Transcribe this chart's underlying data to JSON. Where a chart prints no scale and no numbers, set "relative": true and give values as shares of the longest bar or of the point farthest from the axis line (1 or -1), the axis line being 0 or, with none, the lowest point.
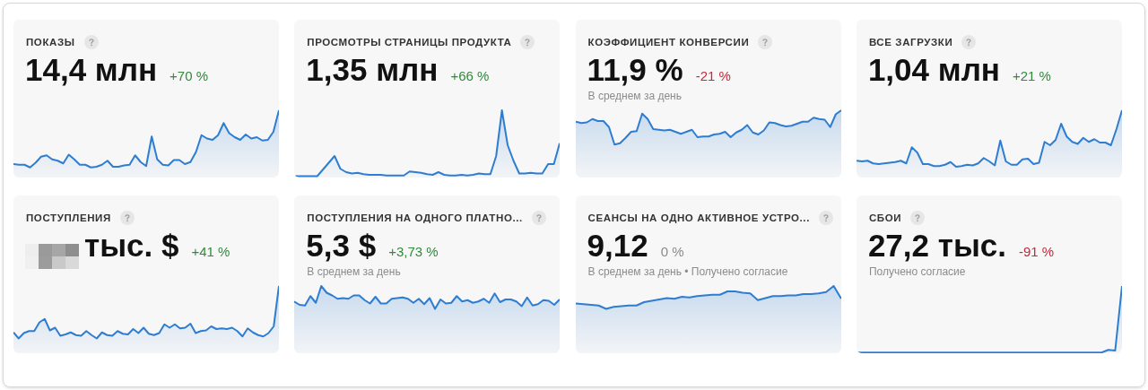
{
  "chart_data": [
    {
      "type": "area",
      "title": "ПОКАЗЫ",
      "subtitle": "14,4 млн",
      "annotations": [
        "+70 %"
      ],
      "relative": true,
      "categories": [
        null,
        null,
        null,
        null,
        null,
        null,
        null,
        null,
        null,
        null,
        null,
        null,
        null,
        null,
        null,
        null,
        null,
        null,
        null,
        null,
        null,
        null,
        null,
        null,
        null,
        null,
        null,
        null,
        null,
        null,
        null,
        null,
        null,
        null,
        null,
        null,
        null,
        null,
        null,
        null,
        null,
        null,
        null,
        null,
        null,
        null,
        null,
        null,
        null
      ],
      "series": [
        {
          "color": "#2e7dd1",
          "values": [
            0.2,
            0.19,
            0.19,
            0.15,
            0.22,
            0.31,
            0.33,
            0.27,
            0.25,
            0.21,
            0.34,
            0.27,
            0.19,
            0.19,
            0.15,
            0.16,
            0.19,
            0.25,
            0.16,
            0.16,
            0.18,
            0.19,
            0.33,
            0.23,
            0.17,
            0.61,
            0.27,
            0.19,
            0.18,
            0.26,
            0.26,
            0.2,
            0.23,
            0.38,
            0.63,
            0.58,
            0.56,
            0.63,
            0.81,
            0.66,
            0.6,
            0.56,
            0.64,
            0.58,
            0.6,
            0.55,
            0.56,
            0.68,
            1
          ]
        }
      ]
    },
    {
      "type": "area",
      "title": "ПРОСМОТРЫ СТРАНИЦЫ ПРОДУКТА",
      "subtitle": "1,35 млн",
      "annotations": [
        "+66 %"
      ],
      "relative": true,
      "categories": [
        null,
        null,
        null,
        null,
        null,
        null,
        null,
        null,
        null,
        null,
        null,
        null,
        null,
        null,
        null,
        null,
        null,
        null,
        null,
        null,
        null,
        null,
        null,
        null,
        null,
        null,
        null,
        null,
        null,
        null,
        null,
        null,
        null,
        null,
        null,
        null,
        null,
        null,
        null,
        null,
        null,
        null,
        null,
        null,
        null,
        null,
        null
      ],
      "series": [
        {
          "color": "#2e7dd1",
          "values": [
            0.02,
            0.02,
            0.02,
            0.02,
            0.02,
            0.12,
            0.22,
            0.32,
            0.13,
            0.08,
            0.06,
            0.07,
            0.05,
            0.04,
            0.04,
            0.04,
            0.03,
            0.03,
            0.03,
            0.03,
            0.09,
            0.08,
            0.07,
            0.05,
            0.04,
            0.08,
            0.04,
            0.03,
            0.03,
            0.04,
            0.03,
            0.04,
            0.06,
            0.05,
            0.05,
            0.32,
            1,
            0.48,
            0.25,
            0.06,
            0.06,
            0.07,
            0.06,
            0.06,
            0.2,
            0.2,
            0.51
          ]
        }
      ]
    },
    {
      "type": "area",
      "title": "КОЭФФИЦИЕНТ КОНВЕРСИИ",
      "subtitle": "11,9 %",
      "annotations": [
        "-21 %",
        "В среднем за день"
      ],
      "relative": true,
      "categories": [
        null,
        null,
        null,
        null,
        null,
        null,
        null,
        null,
        null,
        null,
        null,
        null,
        null,
        null,
        null,
        null,
        null,
        null,
        null,
        null,
        null,
        null,
        null,
        null,
        null,
        null,
        null,
        null,
        null,
        null,
        null,
        null,
        null,
        null,
        null,
        null,
        null,
        null,
        null,
        null,
        null,
        null,
        null,
        null,
        null,
        null,
        null,
        null,
        null
      ],
      "series": [
        {
          "color": "#2e7dd1",
          "values": [
            0.83,
            0.81,
            0.82,
            0.87,
            0.84,
            0.84,
            0.75,
            0.49,
            0.51,
            0.59,
            0.68,
            0.69,
            0.95,
            0.87,
            0.72,
            0.71,
            0.7,
            0.71,
            0.68,
            0.65,
            0.68,
            0.71,
            0.6,
            0.61,
            0.61,
            0.64,
            0.65,
            0.68,
            0.6,
            0.67,
            0.71,
            0.78,
            0.67,
            0.64,
            0.7,
            0.82,
            0.81,
            0.78,
            0.76,
            0.77,
            0.8,
            0.83,
            0.83,
            0.89,
            0.87,
            0.86,
            0.75,
            0.94,
            1
          ]
        }
      ]
    },
    {
      "type": "area",
      "title": "ВСЕ ЗАГРУЗКИ",
      "subtitle": "1,04 млн",
      "annotations": [
        "+21 %"
      ],
      "relative": true,
      "categories": [
        null,
        null,
        null,
        null,
        null,
        null,
        null,
        null,
        null,
        null,
        null,
        null,
        null,
        null,
        null,
        null,
        null,
        null,
        null,
        null,
        null,
        null,
        null,
        null,
        null,
        null,
        null,
        null,
        null,
        null,
        null,
        null,
        null,
        null,
        null,
        null,
        null,
        null,
        null,
        null,
        null,
        null,
        null,
        null,
        null,
        null,
        null,
        null,
        null
      ],
      "series": [
        {
          "color": "#2e7dd1",
          "values": [
            0.25,
            0.24,
            0.25,
            0.21,
            0.2,
            0.21,
            0.22,
            0.23,
            0.25,
            0.21,
            0.45,
            0.37,
            0.2,
            0.2,
            0.17,
            0.17,
            0.19,
            0.23,
            0.16,
            0.17,
            0.19,
            0.18,
            0.21,
            0.29,
            0.24,
            0.18,
            0.55,
            0.24,
            0.19,
            0.19,
            0.27,
            0.28,
            0.2,
            0.22,
            0.53,
            0.48,
            0.56,
            0.8,
            0.61,
            0.53,
            0.5,
            0.59,
            0.53,
            0.57,
            0.52,
            0.52,
            0.48,
            0.72,
            1
          ]
        }
      ]
    },
    {
      "type": "area",
      "title": "ПОСТУПЛЕНИЯ",
      "subtitle": "тыс. $",
      "annotations": [
        "+41 %"
      ],
      "relative": true,
      "categories": [
        null,
        null,
        null,
        null,
        null,
        null,
        null,
        null,
        null,
        null,
        null,
        null,
        null,
        null,
        null,
        null,
        null,
        null,
        null,
        null,
        null,
        null,
        null,
        null,
        null,
        null,
        null,
        null,
        null,
        null,
        null,
        null,
        null,
        null,
        null,
        null,
        null,
        null,
        null,
        null,
        null,
        null,
        null,
        null,
        null,
        null,
        null,
        null,
        null,
        null,
        null,
        null
      ],
      "series": [
        {
          "color": "#2e7dd1",
          "values": [
            0.31,
            0.22,
            0.3,
            0.33,
            0.33,
            0.46,
            0.51,
            0.34,
            0.38,
            0.26,
            0.28,
            0.31,
            0.27,
            0.26,
            0.33,
            0.27,
            0.22,
            0.31,
            0.27,
            0.26,
            0.33,
            0.29,
            0.28,
            0.36,
            0.3,
            0.38,
            0.29,
            0.27,
            0.3,
            0.43,
            0.38,
            0.43,
            0.37,
            0.38,
            0.44,
            0.3,
            0.33,
            0.34,
            0.4,
            0.36,
            0.37,
            0.36,
            0.38,
            0.33,
            0.25,
            0.37,
            0.31,
            0.27,
            0.25,
            0.3,
            0.4,
            1
          ]
        }
      ]
    },
    {
      "type": "area",
      "title": "ПОСТУПЛЕНИЯ НА ОДНОГО ПЛАТНО...",
      "subtitle": "5,3 $",
      "annotations": [
        "+3,73 %",
        "В среднем за день"
      ],
      "relative": true,
      "categories": [
        null,
        null,
        null,
        null,
        null,
        null,
        null,
        null,
        null,
        null,
        null,
        null,
        null,
        null,
        null,
        null,
        null,
        null,
        null,
        null,
        null,
        null,
        null,
        null,
        null,
        null,
        null,
        null,
        null,
        null,
        null,
        null,
        null,
        null,
        null,
        null,
        null,
        null,
        null,
        null,
        null,
        null,
        null,
        null,
        null,
        null,
        null,
        null,
        null,
        null
      ],
      "series": [
        {
          "color": "#2e7dd1",
          "values": [
            0.77,
            0.72,
            0.71,
            0.85,
            0.75,
            1,
            0.9,
            0.86,
            0.81,
            0.82,
            0.81,
            0.86,
            0.86,
            0.79,
            0.74,
            0.84,
            0.74,
            0.74,
            0.81,
            0.82,
            0.83,
            0.81,
            0.75,
            0.81,
            0.73,
            0.82,
            0.66,
            0.8,
            0.74,
            0.75,
            0.85,
            0.77,
            0.79,
            0.75,
            0.77,
            0.81,
            0.75,
            0.89,
            0.76,
            0.8,
            0.8,
            0.77,
            0.7,
            0.83,
            0.71,
            0.73,
            0.79,
            0.78,
            0.72,
            0.8
          ]
        }
      ]
    },
    {
      "type": "area",
      "title": "СЕАНСЫ НА ОДНО АКТИВНОЕ УСТРО...",
      "subtitle": "9,12",
      "annotations": [
        "0 %",
        "В среднем за день • Получено согласие"
      ],
      "relative": true,
      "categories": [
        null,
        null,
        null,
        null,
        null,
        null,
        null,
        null,
        null,
        null,
        null,
        null,
        null,
        null,
        null,
        null,
        null,
        null,
        null,
        null,
        null,
        null,
        null,
        null,
        null,
        null,
        null,
        null,
        null,
        null,
        null,
        null,
        null,
        null,
        null,
        null
      ],
      "series": [
        {
          "color": "#2e7dd1",
          "values": [
            0.74,
            0.73,
            0.72,
            0.71,
            0.66,
            0.69,
            0.7,
            0.71,
            0.71,
            0.76,
            0.78,
            0.8,
            0.82,
            0.81,
            0.84,
            0.83,
            0.85,
            0.86,
            0.87,
            0.87,
            0.92,
            0.92,
            0.9,
            0.89,
            0.79,
            0.82,
            0.85,
            0.85,
            0.86,
            0.86,
            0.88,
            0.88,
            0.89,
            0.91,
            1,
            0.81
          ]
        }
      ]
    },
    {
      "type": "area",
      "title": "СБОИ",
      "subtitle": "27,2 тыс.",
      "annotations": [
        "-91 %",
        "Получено согласие"
      ],
      "relative": true,
      "categories": [
        null,
        null,
        null,
        null,
        null,
        null,
        null,
        null,
        null,
        null,
        null,
        null,
        null,
        null,
        null,
        null,
        null,
        null,
        null,
        null,
        null,
        null,
        null,
        null,
        null,
        null,
        null,
        null,
        null,
        null,
        null,
        null,
        null,
        null,
        null,
        null,
        null,
        null,
        null,
        null
      ],
      "series": [
        {
          "color": "#2e7dd1",
          "values": [
            0.01,
            0.01,
            0.01,
            0.01,
            0.01,
            0.01,
            0.01,
            0.01,
            0.01,
            0.01,
            0.01,
            0.01,
            0.01,
            0.01,
            0.01,
            0.01,
            0.01,
            0.01,
            0.01,
            0.01,
            0.01,
            0.01,
            0.01,
            0.01,
            0.01,
            0.01,
            0.01,
            0.01,
            0.01,
            0.01,
            0.01,
            0.01,
            0.01,
            0.01,
            0.01,
            0.01,
            0.01,
            0.05,
            0.04,
            1
          ]
        }
      ]
    }
  ]
}
